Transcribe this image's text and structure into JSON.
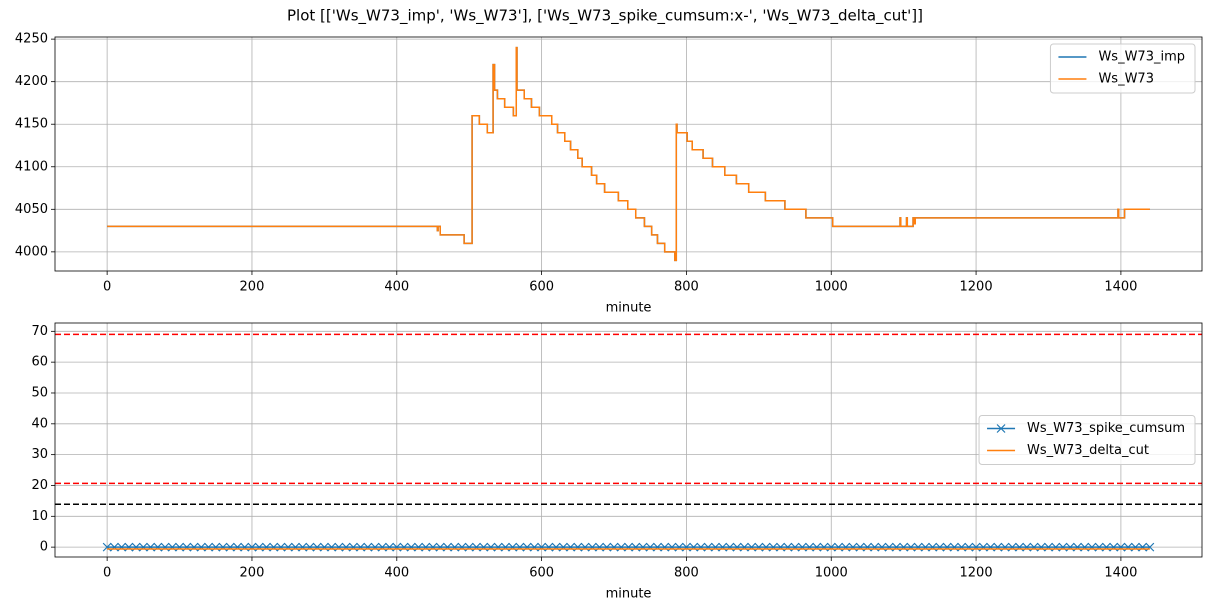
{
  "title": "Plot [['Ws_W73_imp', 'Ws_W73'], ['Ws_W73_spike_cumsum:x-', 'Ws_W73_delta_cut']]",
  "chart_data": [
    {
      "type": "line",
      "drawstyle": "steps-post",
      "xlabel": "minute",
      "xlim": [
        -72,
        1512
      ],
      "ylim": [
        3977.5,
        4252.5
      ],
      "xticks": [
        0,
        200,
        400,
        600,
        800,
        1000,
        1200,
        1400
      ],
      "yticks": [
        4000,
        4050,
        4100,
        4150,
        4200,
        4250
      ],
      "grid": true,
      "legend": "upper right",
      "x": [
        0,
        456,
        457,
        460,
        493,
        504,
        514,
        525,
        533,
        535,
        539,
        549,
        561,
        565,
        566,
        576,
        586,
        597,
        614,
        622,
        632,
        640,
        650,
        656,
        669,
        676,
        687,
        706,
        719,
        730,
        742,
        752,
        760,
        770,
        784,
        786,
        787,
        801,
        808,
        823,
        836,
        853,
        869,
        886,
        909,
        936,
        965,
        1002,
        1095,
        1096,
        1104,
        1105,
        1113,
        1115,
        1116,
        1396,
        1397,
        1405,
        1440
      ],
      "series": [
        {
          "name": "Ws_W73_imp",
          "color": "#1f77b4",
          "values": [
            4030,
            4025,
            4030,
            4020,
            4010,
            4160,
            4150,
            4140,
            4220,
            4190,
            4180,
            4170,
            4160,
            4240,
            4190,
            4180,
            4170,
            4160,
            4150,
            4140,
            4130,
            4120,
            4110,
            4100,
            4090,
            4080,
            4070,
            4060,
            4050,
            4040,
            4030,
            4020,
            4010,
            4000,
            3990,
            4150,
            4140,
            4130,
            4120,
            4110,
            4100,
            4090,
            4080,
            4070,
            4060,
            4050,
            4040,
            4030,
            4040,
            4030,
            4040,
            4030,
            4040,
            4033,
            4040,
            4050,
            4040,
            4050,
            4050
          ]
        },
        {
          "name": "Ws_W73",
          "color": "#ff7f0e",
          "values": [
            4030,
            4025,
            4030,
            4020,
            4010,
            4160,
            4150,
            4140,
            4220,
            4190,
            4180,
            4170,
            4160,
            4240,
            4190,
            4180,
            4170,
            4160,
            4150,
            4140,
            4130,
            4120,
            4110,
            4100,
            4090,
            4080,
            4070,
            4060,
            4050,
            4040,
            4030,
            4020,
            4010,
            4000,
            3990,
            4150,
            4140,
            4130,
            4120,
            4110,
            4100,
            4090,
            4080,
            4070,
            4060,
            4050,
            4040,
            4030,
            4040,
            4030,
            4040,
            4030,
            4040,
            4033,
            4040,
            4050,
            4040,
            4050,
            4050
          ]
        }
      ]
    },
    {
      "type": "line",
      "xlabel": "minute",
      "xlim": [
        -72,
        1512
      ],
      "ylim": [
        -3.2,
        72.7
      ],
      "xticks": [
        0,
        200,
        400,
        600,
        800,
        1000,
        1200,
        1400
      ],
      "yticks": [
        0,
        10,
        20,
        30,
        40,
        50,
        60,
        70
      ],
      "grid": true,
      "legend": "center right",
      "hlines": [
        {
          "value": 69,
          "color": "#ff0000"
        },
        {
          "value": 20.7,
          "color": "#ff0000"
        },
        {
          "value": 13.9,
          "color": "#000000"
        }
      ],
      "x": [
        0,
        10,
        20,
        30,
        40,
        50,
        60,
        70,
        80,
        90,
        100,
        110,
        120,
        130,
        140,
        150,
        160,
        170,
        180,
        190,
        200,
        210,
        220,
        230,
        240,
        250,
        260,
        270,
        280,
        290,
        300,
        310,
        320,
        330,
        340,
        350,
        360,
        370,
        380,
        390,
        400,
        410,
        420,
        430,
        440,
        450,
        460,
        470,
        480,
        490,
        500,
        510,
        520,
        530,
        540,
        550,
        560,
        570,
        580,
        590,
        600,
        610,
        620,
        630,
        640,
        650,
        660,
        670,
        680,
        690,
        700,
        710,
        720,
        730,
        740,
        750,
        760,
        770,
        780,
        790,
        800,
        810,
        820,
        830,
        840,
        850,
        860,
        870,
        880,
        890,
        900,
        910,
        920,
        930,
        940,
        950,
        960,
        970,
        980,
        990,
        1000,
        1010,
        1020,
        1030,
        1040,
        1050,
        1060,
        1070,
        1080,
        1090,
        1100,
        1110,
        1120,
        1130,
        1140,
        1150,
        1160,
        1170,
        1180,
        1190,
        1200,
        1210,
        1220,
        1230,
        1240,
        1250,
        1260,
        1270,
        1280,
        1290,
        1300,
        1310,
        1320,
        1330,
        1340,
        1350,
        1360,
        1370,
        1380,
        1390,
        1400,
        1410,
        1420,
        1430,
        1440
      ],
      "series": [
        {
          "name": "Ws_W73_spike_cumsum",
          "color": "#1f77b4",
          "marker": "x",
          "values": [
            0,
            0,
            0,
            0,
            0,
            0,
            0,
            0,
            0,
            0,
            0,
            0,
            0,
            0,
            0,
            0,
            0,
            0,
            0,
            0,
            0,
            0,
            0,
            0,
            0,
            0,
            0,
            0,
            0,
            0,
            0,
            0,
            0,
            0,
            0,
            0,
            0,
            0,
            0,
            0,
            0,
            0,
            0,
            0,
            0,
            0,
            0,
            0,
            0,
            0,
            0,
            0,
            0,
            0,
            0,
            0,
            0,
            0,
            0,
            0,
            0,
            0,
            0,
            0,
            0,
            0,
            0,
            0,
            0,
            0,
            0,
            0,
            0,
            0,
            0,
            0,
            0,
            0,
            0,
            0,
            0,
            0,
            0,
            0,
            0,
            0,
            0,
            0,
            0,
            0,
            0,
            0,
            0,
            0,
            0,
            0,
            0,
            0,
            0,
            0,
            0,
            0,
            0,
            0,
            0,
            0,
            0,
            0,
            0,
            0,
            0,
            0,
            0,
            0,
            0,
            0,
            0,
            0,
            0,
            0,
            0,
            0,
            0,
            0,
            0,
            0,
            0,
            0,
            0,
            0,
            0,
            0,
            0,
            0,
            0,
            0,
            0,
            0,
            0,
            0,
            0,
            0,
            0,
            0,
            0
          ]
        },
        {
          "name": "Ws_W73_delta_cut",
          "color": "#ff7f0e",
          "x": [
            0,
            1440
          ],
          "values": [
            -0.6,
            -0.6
          ]
        }
      ]
    }
  ]
}
